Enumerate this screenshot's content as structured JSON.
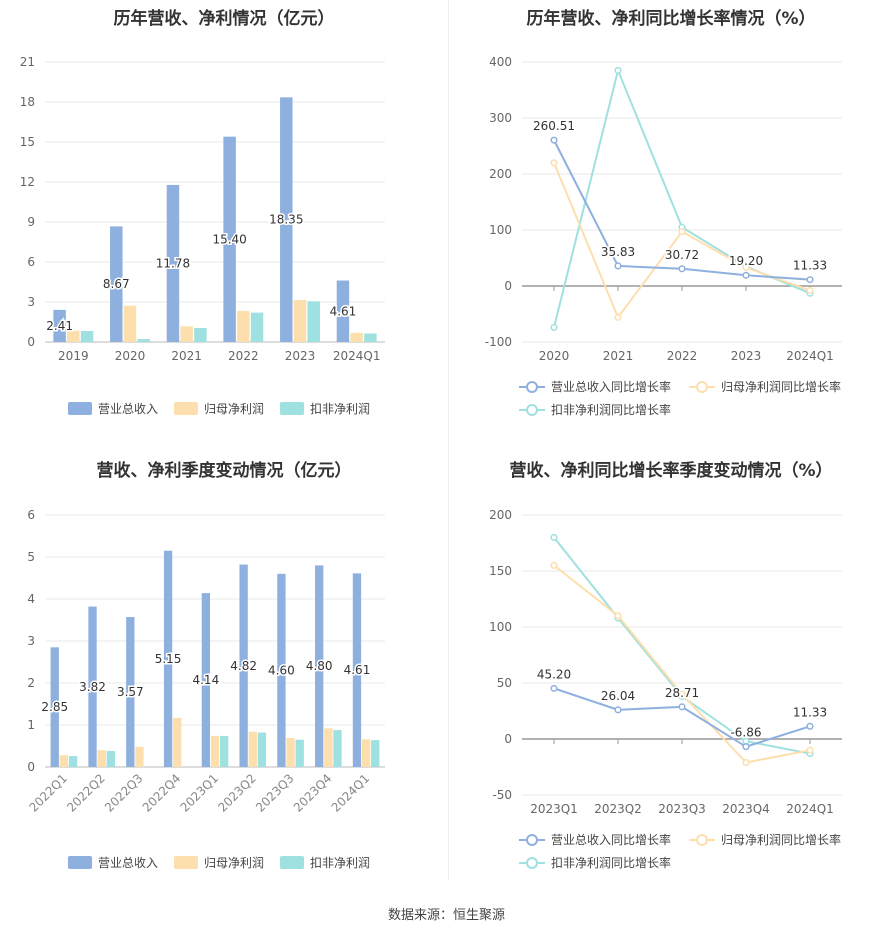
{
  "charts": [
    {
      "title": "历年营收、净利情况（亿元）",
      "type": "bar",
      "categories": [
        "2019",
        "2020",
        "2021",
        "2022",
        "2023",
        "2024Q1"
      ],
      "ylim": [
        0,
        21
      ],
      "yticks": [
        "0",
        "3",
        "6",
        "9",
        "12",
        "15",
        "18",
        "21"
      ],
      "series": [
        {
          "name": "营业总收入",
          "color": "#8eb0df",
          "values": [
            2.41,
            8.67,
            11.78,
            15.4,
            18.35,
            4.61
          ]
        },
        {
          "name": "归母净利润",
          "color": "#fddfae",
          "values": [
            0.85,
            2.72,
            1.18,
            2.33,
            3.15,
            0.68
          ]
        },
        {
          "name": "扣非净利润",
          "color": "#9fe0e0",
          "values": [
            0.82,
            0.22,
            1.05,
            2.2,
            3.05,
            0.64
          ]
        }
      ],
      "data_labels": [
        "2.41",
        "8.67",
        "11.78",
        "15.40",
        "18.35",
        "4.61"
      ]
    },
    {
      "title": "历年营收、净利同比增长率情况（%）",
      "type": "line",
      "categories": [
        "2020",
        "2021",
        "2022",
        "2023",
        "2024Q1"
      ],
      "ylim": [
        -100,
        400
      ],
      "yticks": [
        "-100",
        "0",
        "100",
        "200",
        "300",
        "400"
      ],
      "series": [
        {
          "name": "营业总收入同比增长率",
          "color": "#8eb0df",
          "values": [
            260.51,
            35.83,
            30.72,
            19.2,
            11.33
          ]
        },
        {
          "name": "归母净利润同比增长率",
          "color": "#fddfae",
          "values": [
            220,
            -56,
            97,
            33,
            -8
          ]
        },
        {
          "name": "扣非净利润同比增长率",
          "color": "#9fe0e0",
          "values": [
            -74,
            385,
            105,
            35,
            -13
          ]
        }
      ],
      "data_labels": [
        "260.51",
        "35.83",
        "30.72",
        "19.20",
        "11.33"
      ]
    },
    {
      "title": "营收、净利季度变动情况（亿元）",
      "type": "bar",
      "categories": [
        "2022Q1",
        "2022Q2",
        "2022Q3",
        "2022Q4",
        "2023Q1",
        "2023Q2",
        "2023Q3",
        "2023Q4",
        "2024Q1"
      ],
      "ylim": [
        0,
        6
      ],
      "yticks": [
        "0",
        "1",
        "2",
        "3",
        "4",
        "5",
        "6"
      ],
      "series": [
        {
          "name": "营业总收入",
          "color": "#8eb0df",
          "values": [
            2.85,
            3.82,
            3.57,
            5.15,
            4.14,
            4.82,
            4.6,
            4.8,
            4.61
          ]
        },
        {
          "name": "归母净利润",
          "color": "#fddfae",
          "values": [
            0.28,
            0.4,
            0.48,
            1.17,
            0.74,
            0.84,
            0.69,
            0.92,
            0.66
          ]
        },
        {
          "name": "扣非净利润",
          "color": "#9fe0e0",
          "values": [
            0.26,
            0.38,
            0.0,
            0.0,
            0.74,
            0.82,
            0.65,
            0.88,
            0.64
          ]
        }
      ],
      "data_labels": [
        "2.85",
        "3.82",
        "3.57",
        "5.15",
        "4.14",
        "4.82",
        "4.60",
        "4.80",
        "4.61"
      ]
    },
    {
      "title": "营收、净利同比增长率季度变动情况（%）",
      "type": "line",
      "categories": [
        "2023Q1",
        "2023Q2",
        "2023Q3",
        "2023Q4",
        "2024Q1"
      ],
      "ylim": [
        -50,
        200
      ],
      "yticks": [
        "-50",
        "0",
        "50",
        "100",
        "150",
        "200"
      ],
      "series": [
        {
          "name": "营业总收入同比增长率",
          "color": "#8eb0df",
          "values": [
            45.2,
            26.04,
            28.71,
            -6.86,
            11.33
          ]
        },
        {
          "name": "归母净利润同比增长率",
          "color": "#fddfae",
          "values": [
            155,
            110,
            40,
            -21,
            -10
          ]
        },
        {
          "name": "扣非净利润同比增长率",
          "color": "#9fe0e0",
          "values": [
            180,
            108,
            38,
            -2,
            -13
          ]
        }
      ],
      "data_labels": [
        "45.20",
        "26.04",
        "28.71",
        "-6.86",
        "11.33"
      ]
    }
  ],
  "footer": {
    "source": "数据来源：恒生聚源"
  }
}
